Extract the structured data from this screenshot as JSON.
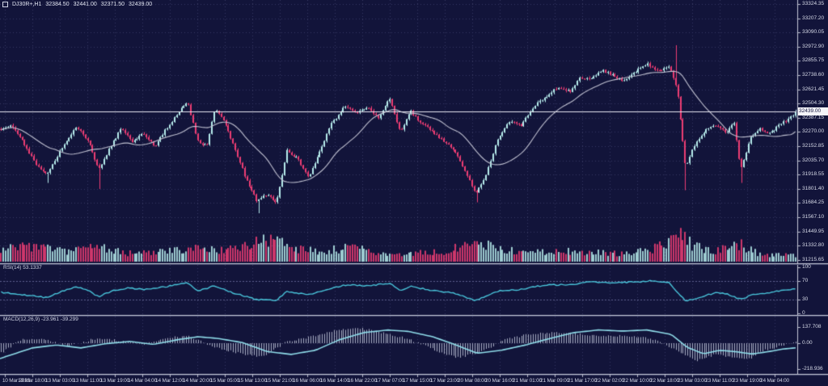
{
  "title": {
    "symbol": "DJ30R+,H1",
    "open": "32384.50",
    "high": "32441.00",
    "low": "32371.50",
    "close": "32439.00"
  },
  "price_axis": {
    "current_price": "32439.00"
  },
  "panels": {
    "rsi": {
      "label": "RSI(14) 53.1337",
      "value": 53.1337,
      "axis_labels": [
        "100",
        "70",
        "30",
        "0"
      ],
      "levels": [
        70,
        30
      ]
    },
    "macd": {
      "label": "MACD(12,26,9) -23.961 -39.299",
      "values": [
        -23.961,
        -39.299
      ],
      "axis_labels": [
        "137.708",
        "0.00",
        "-218.936"
      ]
    }
  },
  "chart_data": {
    "type": "candlestick",
    "title": "DJ30R+,H1",
    "symbol": "DJ30R+",
    "timeframe": "H1",
    "last_bar_ohlc": {
      "open": 32384.5,
      "high": 32441.0,
      "low": 32371.5,
      "close": 32439.0
    },
    "current_price": 32439.0,
    "y_axis": {
      "top_label_value": 33324.35,
      "step": 117.15,
      "grid": true
    },
    "y_labels": [
      "33324.35",
      "33207.20",
      "33090.05",
      "32972.90",
      "32855.75",
      "32738.60",
      "32621.45",
      "32504.30",
      "32387.15",
      "32270.00",
      "32152.85",
      "32035.70",
      "31918.55",
      "31801.40",
      "31684.25",
      "31567.10",
      "31449.95",
      "31332.80",
      "31215.65"
    ],
    "x_labels": [
      "10 Mar 2023",
      "10 Mar 18:00",
      "13 Mar 03:00",
      "13 Mar 11:00",
      "13 Mar 19:00",
      "14 Mar 04:00",
      "14 Mar 12:00",
      "14 Mar 20:00",
      "15 Mar 05:00",
      "15 Mar 13:00",
      "15 Mar 21:00",
      "16 Mar 06:00",
      "16 Mar 14:00",
      "16 Mar 22:00",
      "17 Mar 07:00",
      "17 Mar 15:00",
      "17 Mar 23:00",
      "20 Mar 08:00",
      "20 Mar 16:00",
      "21 Mar 01:00",
      "21 Mar 09:00",
      "21 Mar 17:00",
      "22 Mar 02:00",
      "22 Mar 10:00",
      "22 Mar 18:00",
      "23 Mar 03:00",
      "23 Mar 11:00",
      "23 Mar 19:00",
      "24 Mar 04:00"
    ],
    "price_path": [
      [
        0,
        32290
      ],
      [
        14,
        32330
      ],
      [
        30,
        32170
      ],
      [
        46,
        31990
      ],
      [
        58,
        31920
      ],
      [
        75,
        32120
      ],
      [
        95,
        32320
      ],
      [
        110,
        32180
      ],
      [
        122,
        31960
      ],
      [
        135,
        32130
      ],
      [
        150,
        32300
      ],
      [
        163,
        32190
      ],
      [
        178,
        32260
      ],
      [
        192,
        32150
      ],
      [
        205,
        32290
      ],
      [
        220,
        32420
      ],
      [
        232,
        32530
      ],
      [
        244,
        32200
      ],
      [
        256,
        32150
      ],
      [
        266,
        32470
      ],
      [
        278,
        32350
      ],
      [
        292,
        32110
      ],
      [
        305,
        31870
      ],
      [
        318,
        31700
      ],
      [
        330,
        31760
      ],
      [
        342,
        31680
      ],
      [
        355,
        32120
      ],
      [
        368,
        32050
      ],
      [
        382,
        31900
      ],
      [
        395,
        32100
      ],
      [
        410,
        32340
      ],
      [
        428,
        32490
      ],
      [
        440,
        32420
      ],
      [
        455,
        32470
      ],
      [
        468,
        32380
      ],
      [
        482,
        32550
      ],
      [
        495,
        32270
      ],
      [
        508,
        32440
      ],
      [
        520,
        32350
      ],
      [
        535,
        32270
      ],
      [
        548,
        32200
      ],
      [
        562,
        32120
      ],
      [
        575,
        31950
      ],
      [
        588,
        31760
      ],
      [
        600,
        31900
      ],
      [
        615,
        32200
      ],
      [
        630,
        32360
      ],
      [
        645,
        32320
      ],
      [
        660,
        32480
      ],
      [
        675,
        32560
      ],
      [
        690,
        32640
      ],
      [
        705,
        32600
      ],
      [
        718,
        32720
      ],
      [
        730,
        32700
      ],
      [
        745,
        32780
      ],
      [
        758,
        32740
      ],
      [
        772,
        32690
      ],
      [
        788,
        32780
      ],
      [
        800,
        32830
      ],
      [
        815,
        32770
      ],
      [
        828,
        32810
      ],
      [
        838,
        32600
      ],
      [
        848,
        31970
      ],
      [
        858,
        32150
      ],
      [
        872,
        32280
      ],
      [
        885,
        32330
      ],
      [
        898,
        32260
      ],
      [
        908,
        32350
      ],
      [
        916,
        31960
      ],
      [
        928,
        32220
      ],
      [
        940,
        32300
      ],
      [
        952,
        32260
      ],
      [
        965,
        32330
      ],
      [
        978,
        32390
      ],
      [
        984,
        32439
      ]
    ],
    "wick_spikes": [
      [
        58,
        31850
      ],
      [
        122,
        31800
      ],
      [
        320,
        31600
      ],
      [
        590,
        31690
      ],
      [
        836,
        32985
      ],
      [
        846,
        31790
      ],
      [
        918,
        31850
      ]
    ],
    "volume_envelope": [
      [
        0,
        20
      ],
      [
        40,
        26
      ],
      [
        80,
        18
      ],
      [
        120,
        24
      ],
      [
        160,
        14
      ],
      [
        200,
        16
      ],
      [
        240,
        24
      ],
      [
        280,
        18
      ],
      [
        310,
        30
      ],
      [
        335,
        40
      ],
      [
        360,
        22
      ],
      [
        400,
        18
      ],
      [
        430,
        24
      ],
      [
        470,
        16
      ],
      [
        510,
        14
      ],
      [
        550,
        16
      ],
      [
        580,
        30
      ],
      [
        610,
        26
      ],
      [
        650,
        16
      ],
      [
        690,
        18
      ],
      [
        730,
        16
      ],
      [
        770,
        14
      ],
      [
        800,
        18
      ],
      [
        825,
        30
      ],
      [
        840,
        46
      ],
      [
        855,
        30
      ],
      [
        880,
        16
      ],
      [
        915,
        30
      ],
      [
        940,
        12
      ],
      [
        984,
        10
      ]
    ],
    "rsi_path": [
      [
        0,
        46
      ],
      [
        30,
        40
      ],
      [
        58,
        34
      ],
      [
        80,
        50
      ],
      [
        95,
        58
      ],
      [
        110,
        48
      ],
      [
        122,
        36
      ],
      [
        140,
        50
      ],
      [
        160,
        55
      ],
      [
        180,
        52
      ],
      [
        205,
        58
      ],
      [
        232,
        66
      ],
      [
        244,
        48
      ],
      [
        266,
        60
      ],
      [
        292,
        42
      ],
      [
        318,
        30
      ],
      [
        342,
        28
      ],
      [
        355,
        48
      ],
      [
        382,
        40
      ],
      [
        410,
        55
      ],
      [
        428,
        62
      ],
      [
        455,
        60
      ],
      [
        482,
        65
      ],
      [
        495,
        50
      ],
      [
        508,
        58
      ],
      [
        535,
        50
      ],
      [
        562,
        44
      ],
      [
        588,
        28
      ],
      [
        615,
        48
      ],
      [
        645,
        52
      ],
      [
        675,
        62
      ],
      [
        705,
        62
      ],
      [
        730,
        68
      ],
      [
        758,
        66
      ],
      [
        788,
        68
      ],
      [
        806,
        71
      ],
      [
        828,
        66
      ],
      [
        848,
        27
      ],
      [
        862,
        33
      ],
      [
        885,
        45
      ],
      [
        900,
        42
      ],
      [
        916,
        30
      ],
      [
        932,
        42
      ],
      [
        952,
        45
      ],
      [
        968,
        50
      ],
      [
        984,
        53.1
      ]
    ],
    "macd_signal_path": [
      [
        0,
        -130
      ],
      [
        40,
        -40
      ],
      [
        70,
        -15
      ],
      [
        100,
        -40
      ],
      [
        130,
        -5
      ],
      [
        160,
        15
      ],
      [
        190,
        -10
      ],
      [
        220,
        30
      ],
      [
        245,
        55
      ],
      [
        270,
        40
      ],
      [
        300,
        5
      ],
      [
        330,
        -70
      ],
      [
        360,
        -95
      ],
      [
        390,
        -60
      ],
      [
        420,
        30
      ],
      [
        450,
        90
      ],
      [
        480,
        112
      ],
      [
        505,
        100
      ],
      [
        535,
        55
      ],
      [
        560,
        -5
      ],
      [
        590,
        -85
      ],
      [
        620,
        -60
      ],
      [
        650,
        -15
      ],
      [
        680,
        40
      ],
      [
        710,
        90
      ],
      [
        740,
        112
      ],
      [
        770,
        103
      ],
      [
        800,
        112
      ],
      [
        830,
        75
      ],
      [
        850,
        -35
      ],
      [
        870,
        -90
      ],
      [
        890,
        -60
      ],
      [
        910,
        -72
      ],
      [
        930,
        -92
      ],
      [
        950,
        -72
      ],
      [
        968,
        -50
      ],
      [
        984,
        -39.3
      ]
    ],
    "macd_hist_path": [
      [
        0,
        -90
      ],
      [
        25,
        30
      ],
      [
        55,
        35
      ],
      [
        85,
        -25
      ],
      [
        115,
        35
      ],
      [
        145,
        25
      ],
      [
        175,
        -15
      ],
      [
        205,
        50
      ],
      [
        235,
        55
      ],
      [
        265,
        -30
      ],
      [
        295,
        -85
      ],
      [
        325,
        -115
      ],
      [
        355,
        15
      ],
      [
        385,
        55
      ],
      [
        415,
        110
      ],
      [
        445,
        128
      ],
      [
        475,
        85
      ],
      [
        505,
        35
      ],
      [
        535,
        -50
      ],
      [
        565,
        -125
      ],
      [
        595,
        -75
      ],
      [
        625,
        35
      ],
      [
        655,
        75
      ],
      [
        685,
        95
      ],
      [
        715,
        78
      ],
      [
        745,
        58
      ],
      [
        775,
        65
      ],
      [
        805,
        42
      ],
      [
        835,
        -55
      ],
      [
        860,
        -150
      ],
      [
        885,
        -95
      ],
      [
        905,
        -115
      ],
      [
        925,
        -135
      ],
      [
        945,
        -60
      ],
      [
        965,
        -25
      ],
      [
        984,
        12
      ]
    ],
    "colors": {
      "background": "#12143a",
      "grid": "#363963",
      "bull": "#b7ecec",
      "bear": "#ee3d74",
      "ma_line": "#c0c1d1",
      "price_line": "#e9e9f2",
      "rsi_line": "#49c4da",
      "rsi_levels": "#5f6190",
      "macd_signal": "#8fdce9",
      "macd_histogram": "#b9bdd2",
      "divider": "#c6c9d8",
      "axis_text": "#d7dae8"
    }
  }
}
